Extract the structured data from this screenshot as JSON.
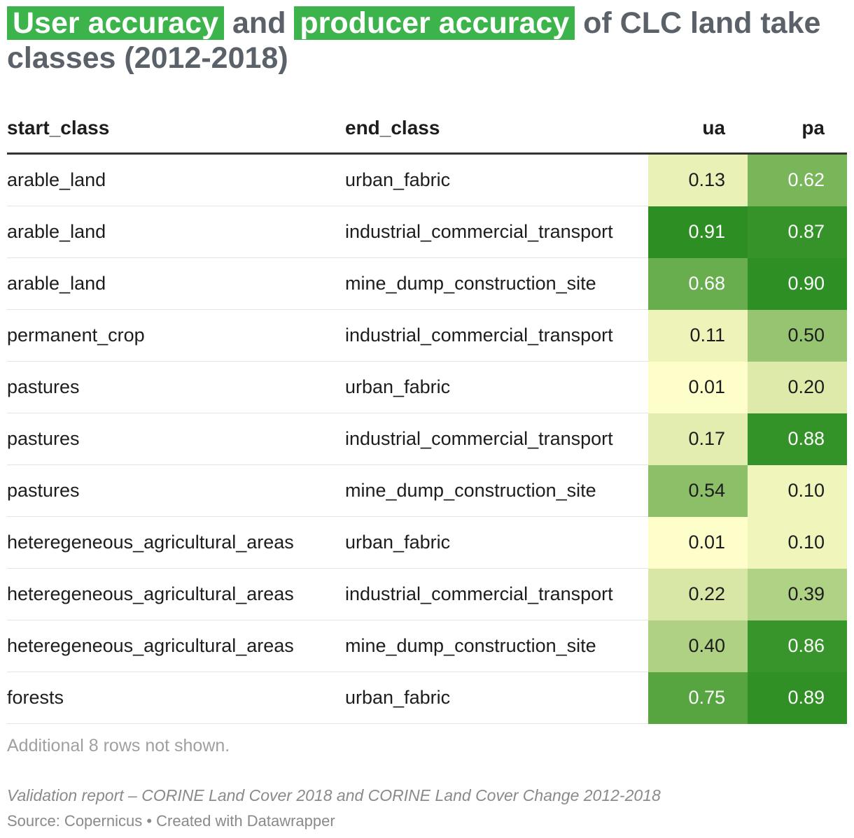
{
  "title": {
    "hl1": "User accuracy",
    "mid": " and ",
    "hl2": "producer accuracy",
    "rest": " of CLC land take classes (2012-2018)"
  },
  "colors": {
    "highlight": "#3cb44b",
    "scale_low": "#ffffcc",
    "scale_high": "#2d8f24"
  },
  "chart_data": {
    "type": "table",
    "columns": [
      "start_class",
      "end_class",
      "ua",
      "pa"
    ],
    "rows": [
      {
        "start_class": "arable_land",
        "end_class": "urban_fabric",
        "ua": 0.13,
        "pa": 0.62
      },
      {
        "start_class": "arable_land",
        "end_class": "industrial_commercial_transport",
        "ua": 0.91,
        "pa": 0.87
      },
      {
        "start_class": "arable_land",
        "end_class": "mine_dump_construction_site",
        "ua": 0.68,
        "pa": 0.9
      },
      {
        "start_class": "permanent_crop",
        "end_class": "industrial_commercial_transport",
        "ua": 0.11,
        "pa": 0.5
      },
      {
        "start_class": "pastures",
        "end_class": "urban_fabric",
        "ua": 0.01,
        "pa": 0.2
      },
      {
        "start_class": "pastures",
        "end_class": "industrial_commercial_transport",
        "ua": 0.17,
        "pa": 0.88
      },
      {
        "start_class": "pastures",
        "end_class": "mine_dump_construction_site",
        "ua": 0.54,
        "pa": 0.1
      },
      {
        "start_class": "heteregeneous_agricultural_areas",
        "end_class": "urban_fabric",
        "ua": 0.01,
        "pa": 0.1
      },
      {
        "start_class": "heteregeneous_agricultural_areas",
        "end_class": "industrial_commercial_transport",
        "ua": 0.22,
        "pa": 0.39
      },
      {
        "start_class": "heteregeneous_agricultural_areas",
        "end_class": "mine_dump_construction_site",
        "ua": 0.4,
        "pa": 0.86
      },
      {
        "start_class": "forests",
        "end_class": "urban_fabric",
        "ua": 0.75,
        "pa": 0.89
      }
    ]
  },
  "note": "Additional 8 rows not shown.",
  "source_line": "Validation report – CORINE Land Cover 2018 and CORINE Land Cover Change 2012-2018",
  "credit": "Source: Copernicus • Created with Datawrapper"
}
